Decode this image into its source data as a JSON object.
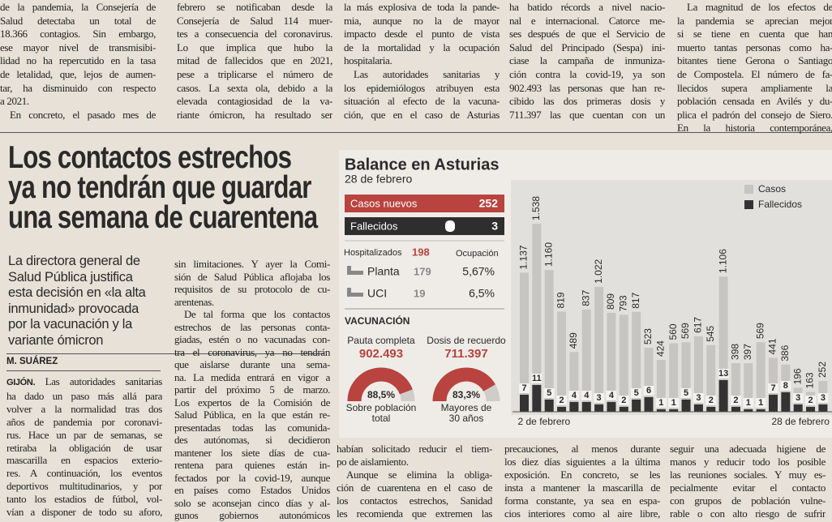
{
  "article": {
    "top_columns": [
      [
        "de la pandemia, la Consejería de",
        "Salud detectaba un total de",
        "18.366 contagios. Sin embargo,",
        "ese mayor nivel de transmisibi-",
        "lidad no ha repercutido en la tasa",
        "de letalidad, que, lejos de aumen-",
        "tar, ha disminuido con respecto",
        "a 2021.",
        "En concreto, el pasado mes de"
      ],
      [
        "febrero se notificaban desde la",
        "Consejería de Salud 114 muer-",
        "tes a consecuencia del coronavirus.",
        "Lo que implica que hubo la",
        "mitad de fallecidos que en 2021,",
        "pese a triplicarse el número de",
        "casos. La sexta ola, debido a la",
        "elevada contagiosidad de la va-",
        "riante ómicron, ha resultado ser"
      ],
      [
        "la más explosiva de toda la pande-",
        "mia, aunque no la de mayor",
        "impacto desde el punto de vista",
        "de la mortalidad y la ocupación",
        "hospitalaria.",
        "Las autoridades sanitarias y",
        "los epidemiólogos atribuyen esta",
        "situación al efecto de la vacuna-",
        "ción, que en el caso de Asturias"
      ],
      [
        "ha batido récords a nivel nacio-",
        "nal e internacional. Catorce me-",
        "ses después de que el Servicio de",
        "Salud del Principado (Sespa) ini-",
        "ciase la campaña de inmuniza-",
        "ción contra la covid-19, ya son",
        "902.493 las personas que han re-",
        "cibido las dos primeras dosis y",
        "711.397 las que cuentan con un"
      ],
      [
        "La magnitud de los efectos de",
        "la pandemia se aprecian mejor",
        "si se tiene en cuenta que han",
        "muerto tantas personas como ha-",
        "bitantes tiene Gerona o Santiago",
        "de Compostela. El número de fa-",
        "llecidos supera ampliamente la",
        "población censada en Avilés y du-",
        "plica el padrón del consejo de Siero.",
        "En la historia contemporánea,"
      ]
    ],
    "headline": [
      "Los contactos estrechos",
      "ya no tendrán que guardar",
      "una semana de cuarentena"
    ],
    "standfirst": [
      "La directora general de",
      "Salud Pública justifica",
      "esta decisión en «la alta",
      "inmunidad» provocada",
      "por la vacunación y la",
      "variante ómicron"
    ],
    "byline": "M. SUÁREZ",
    "dateline": "GIJÓN.",
    "body_columns": [
      [
        "Las autoridades sanitarias",
        "ha dado un paso más allá para",
        "volver a la normalidad tras dos",
        "años de pandemia por coronavi-",
        "rus. Hace un par de semanas, se",
        "retiraba la obligación de usar",
        "mascarilla en espacios exterio-",
        "res. A continuación, los eventos",
        "deportivos multitudinarios, y por",
        "tanto los estadios de fútbol, vol-",
        "vían a disponer de todo su aforo,"
      ],
      [
        "sin limitaciones. Y ayer la Comi-",
        "sión de Salud Pública aflojaba los",
        "requisitos de su protocolo de cu-",
        "arentenas.",
        "De tal forma que los contactos",
        "estrechos de las personas conta-",
        "giadas, estén o no vacunadas con-",
        "tra el coronavirus, ya no tendrán",
        "que aislarse durante una sema-",
        "na. La medida entrará en vigor a",
        "partir del próximo 5 de marzo.",
        "Los expertos de la Comisión de",
        "Salud Pública, en la que están re-",
        "presentadas todas las comunida-",
        "des autónomas, si decidieron",
        "mantener los siete días de cua-",
        "rentena para quienes están in-",
        "fectados por la covid-19, aunque",
        "en países como Estados Unidos",
        "solo se aconsejan cinco días y al-",
        "gunos gobiernos autonómicos"
      ],
      [
        "habían solicitado reducir el tiem-",
        "po de aislamiento.",
        "Aunque se elimina la obliga-",
        "ción de cuarentena en el caso de",
        "los contactos estrechos, Sanidad",
        "les recomienda que extremen las"
      ],
      [
        "precauciones, al menos durante",
        "los diez días siguientes a la última",
        "exposición. En concreto, se les",
        "insta a mantener la mascarilla de",
        "forma constante, ya sea en espa-",
        "cios interiores como al aire libre,"
      ],
      [
        "seguir una adecuada higiene de",
        "manos y reducir todo los posible",
        "las reuniones sociales. Y muy es-",
        "pecialmente evitar el contacto",
        "con grupos de población vulne-",
        "rable o con alto riesgo de sufrir"
      ]
    ]
  },
  "infographic": {
    "title": "Balance en Asturias",
    "date": "28 de febrero",
    "new_cases": {
      "label": "Casos nuevos",
      "value": "252"
    },
    "deaths": {
      "label": "Fallecidos",
      "value": "3"
    },
    "hospitalized": {
      "label": "Hospitalizados",
      "value": "198"
    },
    "occupancy_label": "Ocupación",
    "wards": [
      {
        "label": "Planta",
        "value": "179",
        "occupancy": "5,67%"
      },
      {
        "label": "UCI",
        "value": "19",
        "occupancy": "6,5%"
      }
    ],
    "vaccination": {
      "title": "VACUNACIÓN",
      "items": [
        {
          "label": "Pauta completa",
          "value": "902.493",
          "gauge": 88.5,
          "gauge_label": "88,5%",
          "caption": [
            "Sobre población",
            "total"
          ]
        },
        {
          "label": "Dosis de recuerdo",
          "value": "711.397",
          "gauge": 83.3,
          "gauge_label": "83,3%",
          "caption": [
            "Mayores de",
            "30 años"
          ]
        }
      ]
    }
  },
  "chart_data": {
    "type": "bar",
    "legend": "top-right",
    "categories": [
      "2 de febrero",
      null,
      null,
      null,
      null,
      null,
      null,
      null,
      null,
      null,
      null,
      null,
      null,
      null,
      null,
      null,
      null,
      null,
      null,
      null,
      null,
      null,
      null,
      null,
      "28 de febrero"
    ],
    "series": [
      {
        "name": "Casos",
        "color": "#c6c5c2",
        "values": [
          1137,
          1538,
          1160,
          819,
          489,
          837,
          1022,
          809,
          793,
          817,
          523,
          424,
          560,
          569,
          617,
          545,
          1106,
          398,
          397,
          569,
          441,
          386,
          196,
          163,
          252
        ],
        "value_labels": [
          "1.137",
          "1.538",
          "1.160",
          "819",
          "489",
          "837",
          "1.022",
          "809",
          "793",
          "817",
          "523",
          "424",
          "560",
          "569",
          "617",
          "545",
          "1.106",
          "398",
          "397",
          "569",
          "441",
          "386",
          "196",
          "163",
          "252"
        ]
      },
      {
        "name": "Fallecidos",
        "color": "#333333",
        "values": [
          7,
          11,
          5,
          2,
          4,
          4,
          3,
          4,
          2,
          5,
          6,
          1,
          1,
          5,
          3,
          2,
          13,
          2,
          1,
          1,
          7,
          8,
          3,
          2,
          3
        ]
      }
    ]
  }
}
